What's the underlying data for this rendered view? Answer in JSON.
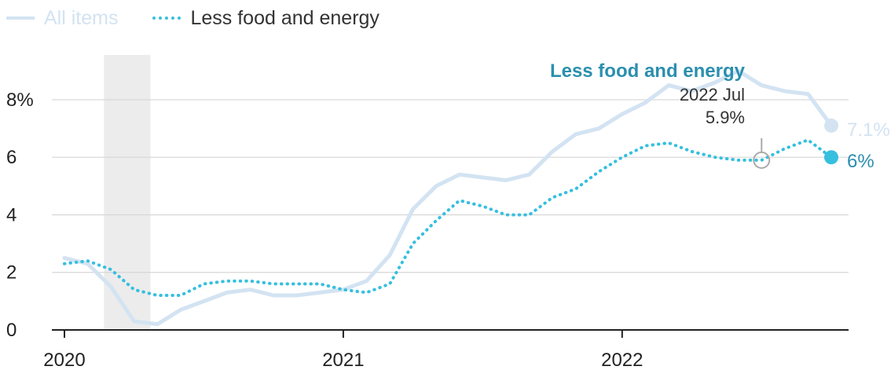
{
  "chart_data": {
    "type": "line",
    "title": "",
    "xlabel": "",
    "ylabel": "",
    "ylim": [
      0,
      9.5
    ],
    "xlim": [
      "2020-01",
      "2022-10"
    ],
    "y_ticks": [
      {
        "value": 8,
        "label": "8%"
      },
      {
        "value": 6,
        "label": "6"
      },
      {
        "value": 4,
        "label": "4"
      },
      {
        "value": 2,
        "label": "2"
      },
      {
        "value": 0,
        "label": "0"
      }
    ],
    "x_ticks": [
      {
        "value": "2020-01",
        "label": "2020"
      },
      {
        "value": "2021-01",
        "label": "2021"
      },
      {
        "value": "2022-01",
        "label": "2022"
      }
    ],
    "grid": "horizontal",
    "legend_position": "top-left",
    "recession": {
      "start": "2020-02.7",
      "end": "2020-04.7"
    },
    "series": [
      {
        "name": "All items",
        "color": "#d3e3f2",
        "style": "solid",
        "end_label": "7.1%",
        "x": [
          "2020-01",
          "2020-02",
          "2020-03",
          "2020-04",
          "2020-05",
          "2020-06",
          "2020-07",
          "2020-08",
          "2020-09",
          "2020-10",
          "2020-11",
          "2020-12",
          "2021-01",
          "2021-02",
          "2021-03",
          "2021-04",
          "2021-05",
          "2021-06",
          "2021-07",
          "2021-08",
          "2021-09",
          "2021-10",
          "2021-11",
          "2021-12",
          "2022-01",
          "2022-02",
          "2022-03",
          "2022-04",
          "2022-05",
          "2022-06",
          "2022-07",
          "2022-08",
          "2022-09",
          "2022-10"
        ],
        "values": [
          2.5,
          2.3,
          1.5,
          0.3,
          0.2,
          0.7,
          1.0,
          1.3,
          1.4,
          1.2,
          1.2,
          1.3,
          1.4,
          1.7,
          2.6,
          4.2,
          5.0,
          5.4,
          5.3,
          5.2,
          5.4,
          6.2,
          6.8,
          7.0,
          7.5,
          7.9,
          8.5,
          8.3,
          8.6,
          9.0,
          8.5,
          8.3,
          8.2,
          7.1
        ]
      },
      {
        "name": "Less food and energy",
        "color": "#36bfdf",
        "style": "dotted",
        "end_label": "6%",
        "x": [
          "2020-01",
          "2020-02",
          "2020-03",
          "2020-04",
          "2020-05",
          "2020-06",
          "2020-07",
          "2020-08",
          "2020-09",
          "2020-10",
          "2020-11",
          "2020-12",
          "2021-01",
          "2021-02",
          "2021-03",
          "2021-04",
          "2021-05",
          "2021-06",
          "2021-07",
          "2021-08",
          "2021-09",
          "2021-10",
          "2021-11",
          "2021-12",
          "2022-01",
          "2022-02",
          "2022-03",
          "2022-04",
          "2022-05",
          "2022-06",
          "2022-07",
          "2022-08",
          "2022-09",
          "2022-10"
        ],
        "values": [
          2.3,
          2.4,
          2.1,
          1.4,
          1.2,
          1.2,
          1.6,
          1.7,
          1.7,
          1.6,
          1.6,
          1.6,
          1.4,
          1.3,
          1.6,
          3.0,
          3.8,
          4.5,
          4.3,
          4.0,
          4.0,
          4.6,
          4.9,
          5.5,
          6.0,
          6.4,
          6.5,
          6.2,
          6.0,
          5.9,
          5.9,
          6.3,
          6.6,
          6.0
        ]
      }
    ],
    "annotation": {
      "title": "Less food and energy",
      "date": "2022 Jul",
      "value_label": "5.9%",
      "x": "2022-07",
      "y": 5.9
    }
  }
}
